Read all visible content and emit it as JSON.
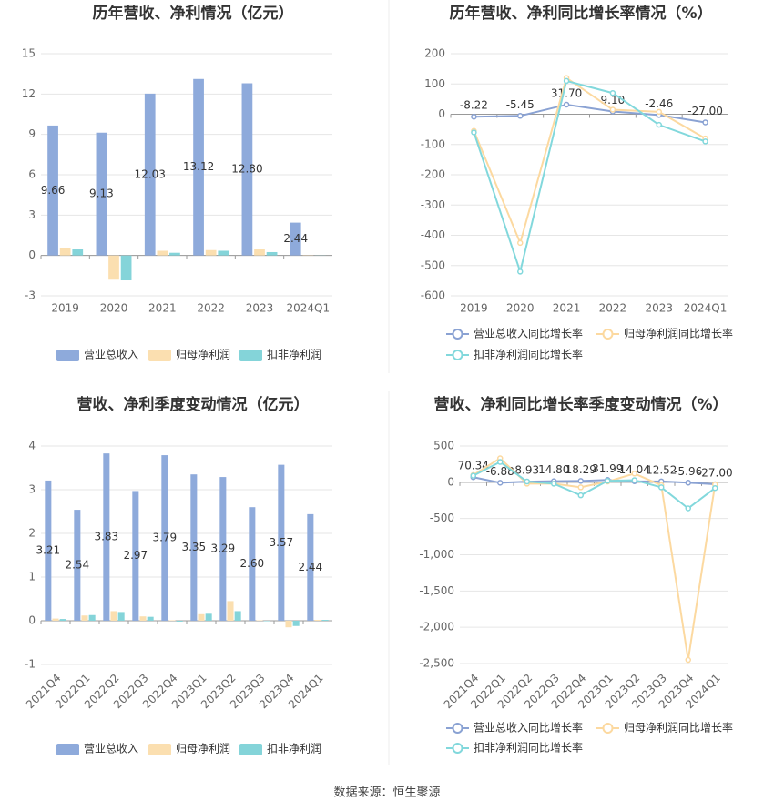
{
  "chart_data": [
    {
      "type": "bar",
      "title": "历年营收、净利情况（亿元）",
      "categories": [
        "2019",
        "2020",
        "2021",
        "2022",
        "2023",
        "2024Q1"
      ],
      "series": [
        {
          "name": "营业总收入",
          "color": "#8eaadb",
          "values": [
            9.66,
            9.13,
            12.03,
            13.12,
            12.8,
            2.44
          ],
          "value_labels": [
            "9.66",
            "9.13",
            "12.03",
            "13.12",
            "12.80",
            "2.44"
          ]
        },
        {
          "name": "归母净利润",
          "color": "#fbdfb0",
          "values": [
            0.55,
            -1.8,
            0.35,
            0.4,
            0.45,
            0.02
          ]
        },
        {
          "name": "扣非净利润",
          "color": "#84d4d9",
          "values": [
            0.45,
            -1.85,
            0.2,
            0.35,
            0.25,
            0.01
          ]
        }
      ],
      "ylim": [
        -3,
        15
      ],
      "yticks": [
        -3,
        0,
        3,
        6,
        9,
        12,
        15
      ],
      "grid": true
    },
    {
      "type": "line",
      "title": "历年营收、净利同比增长率情况（%）",
      "categories": [
        "2019",
        "2020",
        "2021",
        "2022",
        "2023",
        "2024Q1"
      ],
      "series": [
        {
          "name": "营业总收入同比增长率",
          "color": "#8aa2d3",
          "values": [
            -8.22,
            -5.45,
            31.7,
            9.1,
            -2.46,
            -27.0
          ],
          "value_labels": [
            "-8.22",
            "-5.45",
            "31.70",
            "9.10",
            "-2.46",
            "-27.00"
          ]
        },
        {
          "name": "归母净利润同比增长率",
          "color": "#fcd9a0",
          "values": [
            -55,
            -425,
            120,
            15,
            8,
            -80
          ]
        },
        {
          "name": "扣非净利润同比增长率",
          "color": "#82d8dc",
          "values": [
            -60,
            -520,
            110,
            70,
            -35,
            -90
          ]
        }
      ],
      "ylim": [
        -600,
        200
      ],
      "yticks": [
        -600,
        -500,
        -400,
        -300,
        -200,
        -100,
        0,
        100,
        200
      ],
      "grid": true
    },
    {
      "type": "bar",
      "title": "营收、净利季度变动情况（亿元）",
      "categories": [
        "2021Q4",
        "2022Q1",
        "2022Q2",
        "2022Q3",
        "2022Q4",
        "2023Q1",
        "2023Q2",
        "2023Q3",
        "2023Q4",
        "2024Q1"
      ],
      "series": [
        {
          "name": "营业总收入",
          "color": "#8eaadb",
          "values": [
            3.21,
            2.54,
            3.83,
            2.97,
            3.79,
            3.35,
            3.29,
            2.6,
            3.57,
            2.44
          ],
          "value_labels": [
            "3.21",
            "2.54",
            "3.83",
            "2.97",
            "3.79",
            "3.35",
            "3.29",
            "2.60",
            "3.57",
            "2.44"
          ]
        },
        {
          "name": "归母净利润",
          "color": "#fbdfb0",
          "values": [
            0.05,
            0.12,
            0.22,
            0.1,
            0.01,
            0.15,
            0.45,
            0.01,
            -0.15,
            0.02
          ]
        },
        {
          "name": "扣非净利润",
          "color": "#84d4d9",
          "values": [
            0.04,
            0.13,
            0.2,
            0.09,
            -0.02,
            0.16,
            0.22,
            -0.01,
            -0.12,
            0.02
          ]
        }
      ],
      "ylim": [
        -1,
        4
      ],
      "yticks": [
        -1,
        0,
        1,
        2,
        3,
        4
      ],
      "grid": true,
      "x_label_rotation": -45
    },
    {
      "type": "line",
      "title": "营收、净利同比增长率季度变动情况（%）",
      "categories": [
        "2021Q4",
        "2022Q1",
        "2022Q2",
        "2022Q3",
        "2022Q4",
        "2023Q1",
        "2023Q2",
        "2023Q3",
        "2023Q4",
        "2024Q1"
      ],
      "series": [
        {
          "name": "营业总收入同比增长率",
          "color": "#8aa2d3",
          "values": [
            70.34,
            -6.88,
            8.93,
            14.8,
            18.29,
            31.99,
            14.04,
            12.52,
            -5.96,
            -27.0
          ],
          "value_labels": [
            "70.34",
            "-6.88",
            "8.93",
            "14.80",
            "18.29",
            "31.99",
            "14.04",
            "12.52",
            "-5.96",
            "-27.00"
          ]
        },
        {
          "name": "归母净利润同比增长率",
          "color": "#fcd9a0",
          "values": [
            100,
            330,
            -20,
            -20,
            -70,
            10,
            120,
            -40,
            -2450,
            -30
          ]
        },
        {
          "name": "扣非净利润同比增长率",
          "color": "#82d8dc",
          "values": [
            90,
            280,
            10,
            -20,
            -180,
            20,
            30,
            -70,
            -360,
            -80
          ]
        }
      ],
      "ylim": [
        -2500,
        500
      ],
      "yticks": [
        {
          "value": -2500,
          "label": "-2,500"
        },
        {
          "value": -2000,
          "label": "-2,000"
        },
        {
          "value": -1500,
          "label": "-1,500"
        },
        {
          "value": -1000,
          "label": "-1,000"
        },
        -500,
        0,
        500
      ],
      "grid": true,
      "x_label_rotation": -45
    }
  ],
  "source": "数据来源：恒生聚源"
}
